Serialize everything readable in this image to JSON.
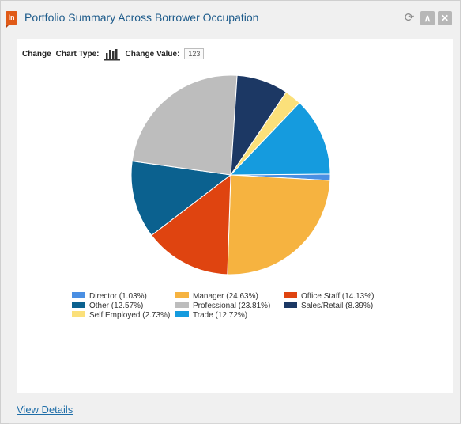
{
  "widget": {
    "badge": "In",
    "title": "Portfolio Summary Across Borrower Occupation",
    "icons": {
      "refresh": "refresh-icon",
      "collapse": "chevron-up-icon",
      "close": "close-icon"
    }
  },
  "toolbar": {
    "change_label": "Change",
    "chart_type_label": "Chart Type:",
    "chart_type_icon": "bar-chart-icon",
    "change_value_label": "Change Value:",
    "change_value_box": "123"
  },
  "footer": {
    "view_details": "View Details"
  },
  "chart_data": {
    "type": "pie",
    "slices": [
      {
        "label": "Director",
        "value": 1.03,
        "legend": "Director (1.03%)",
        "color": "#4a8fe3"
      },
      {
        "label": "Manager",
        "value": 24.63,
        "legend": "Manager (24.63%)",
        "color": "#f6b340"
      },
      {
        "label": "Office Staff",
        "value": 14.13,
        "legend": "Office Staff (14.13%)",
        "color": "#df4410"
      },
      {
        "label": "Other",
        "value": 12.57,
        "legend": "Other (12.57%)",
        "color": "#0b618f"
      },
      {
        "label": "Professional",
        "value": 23.81,
        "legend": "Professional (23.81%)",
        "color": "#bdbdbd"
      },
      {
        "label": "Sales/Retail",
        "value": 8.39,
        "legend": "Sales/Retail (8.39%)",
        "color": "#1c3864"
      },
      {
        "label": "Self Employed",
        "value": 2.73,
        "legend": "Self Employed (2.73%)",
        "color": "#fbe07a"
      },
      {
        "label": "Trade",
        "value": 12.72,
        "legend": "Trade (12.72%)",
        "color": "#159bde"
      }
    ],
    "legend_order": [
      0,
      3,
      6,
      1,
      4,
      7,
      2,
      5
    ]
  }
}
